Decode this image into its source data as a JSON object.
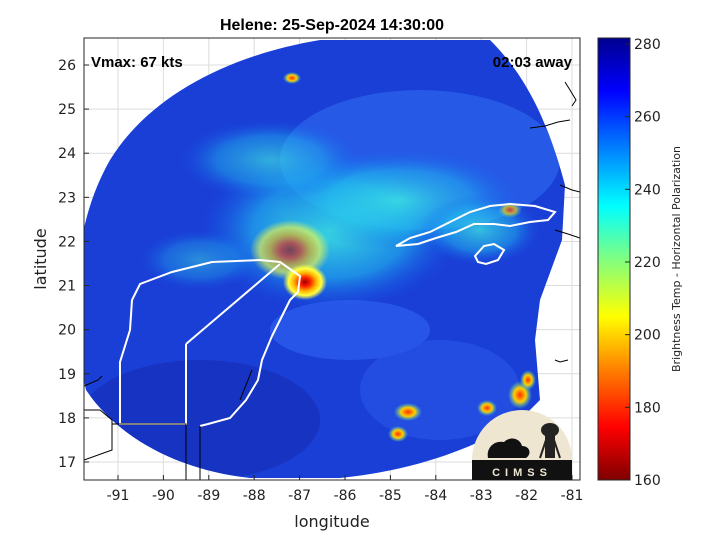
{
  "title": "Helene: 25-Sep-2024 14:30:00",
  "annotations": {
    "vmax": "Vmax: 67 kts",
    "away": "02:03 away"
  },
  "xlabel": "longitude",
  "ylabel": "latitude",
  "xticks": [
    "-91",
    "-90",
    "-89",
    "-88",
    "-87",
    "-86",
    "-85",
    "-84",
    "-83",
    "-82",
    "-81"
  ],
  "yticks": [
    "26",
    "25",
    "24",
    "23",
    "22",
    "21",
    "20",
    "19",
    "18",
    "17"
  ],
  "colorbar": {
    "label": "Brightness Temp - Horizontal Polarization",
    "ticks": [
      "280",
      "260",
      "240",
      "220",
      "200",
      "180",
      "160"
    ],
    "colormap": [
      "#7f0000",
      "#ff0000",
      "#ff8000",
      "#ffff00",
      "#80ff80",
      "#00ffff",
      "#0080ff",
      "#0000ff",
      "#00008f"
    ]
  },
  "logo": {
    "text": "CIMSS"
  },
  "map": {
    "lon_range": [
      -91.6,
      -80.8
    ],
    "lat_range": [
      16.6,
      26.5
    ],
    "storm_center": [
      -86.75,
      21.05
    ],
    "storm_center_temp": 165,
    "background_temp": 268,
    "swath_color": "#1a3fd6"
  }
}
